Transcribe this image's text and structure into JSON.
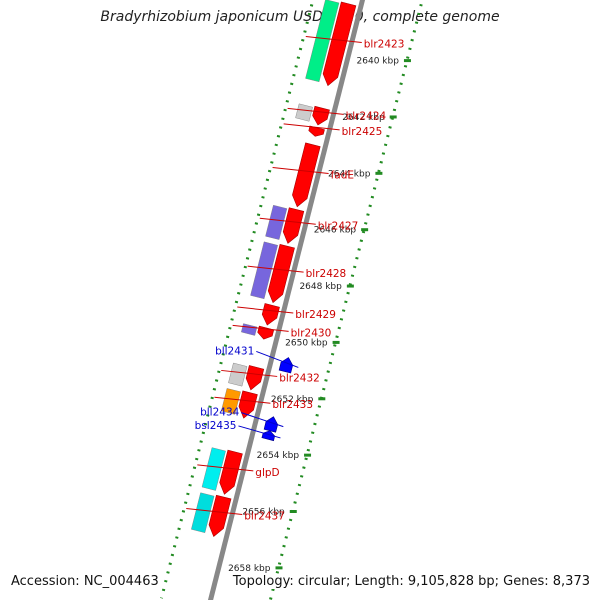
{
  "title": "Bradyrhizobium japonicum USDA 110, complete genome",
  "footer": {
    "accession": "Accession: NC_004463",
    "topology": "Topology: circular; Length: 9,105,828 bp; Genes: 8,373"
  },
  "colors": {
    "backbone": "#888888",
    "forward_gene": "#ff0000",
    "reverse_gene": "#0000ff",
    "forward_label": "#cc0000",
    "reverse_label": "#0000cc",
    "scale_dots": "#228b22"
  },
  "scale_ticks": [
    {
      "kbp": 2640,
      "label": "2640 kbp"
    },
    {
      "kbp": 2642,
      "label": "2642 kbp"
    },
    {
      "kbp": 2644,
      "label": "2644 kbp"
    },
    {
      "kbp": 2646,
      "label": "2646 kbp"
    },
    {
      "kbp": 2648,
      "label": "2648 kbp"
    },
    {
      "kbp": 2650,
      "label": "2650 kbp"
    },
    {
      "kbp": 2652,
      "label": "2652 kbp"
    },
    {
      "kbp": 2654,
      "label": "2654 kbp"
    },
    {
      "kbp": 2656,
      "label": "2656 kbp"
    },
    {
      "kbp": 2658,
      "label": "2658 kbp"
    }
  ],
  "forward_genes": [
    {
      "name": "blr2423",
      "start": 2638.6,
      "end": 2641.5,
      "feature_color": "#00ee88"
    },
    {
      "name": "blr2424",
      "start": 2642.3,
      "end": 2642.9,
      "feature_color": "#cccccc"
    },
    {
      "name": "blr2425",
      "start": 2643.0,
      "end": 2643.3,
      "feature_color": ""
    },
    {
      "name": "fadE",
      "start": 2643.6,
      "end": 2645.8,
      "feature_color": ""
    },
    {
      "name": "blr2427",
      "start": 2645.9,
      "end": 2647.1,
      "feature_color": "#7766dd"
    },
    {
      "name": "blr2428",
      "start": 2647.2,
      "end": 2649.2,
      "feature_color": "#7766dd"
    },
    {
      "name": "blr2429",
      "start": 2649.3,
      "end": 2650.0,
      "feature_color": ""
    },
    {
      "name": "blr2430",
      "start": 2650.1,
      "end": 2650.5,
      "feature_color": "#7766dd"
    },
    {
      "name": "blr2432",
      "start": 2651.5,
      "end": 2652.3,
      "feature_color": "#cccccc"
    },
    {
      "name": "blr2433",
      "start": 2652.4,
      "end": 2653.3,
      "feature_color": "#ff9900"
    },
    {
      "name": "glpD",
      "start": 2654.5,
      "end": 2656.0,
      "feature_color": "#00eeee"
    },
    {
      "name": "blr2437",
      "start": 2656.1,
      "end": 2657.5,
      "feature_color": "#00dddd"
    }
  ],
  "reverse_genes": [
    {
      "name": "bll2431",
      "start": 2650.9,
      "end": 2651.4
    },
    {
      "name": "bll2434",
      "start": 2653.0,
      "end": 2653.5
    },
    {
      "name": "bsl2435",
      "start": 2653.5,
      "end": 2653.8
    }
  ]
}
